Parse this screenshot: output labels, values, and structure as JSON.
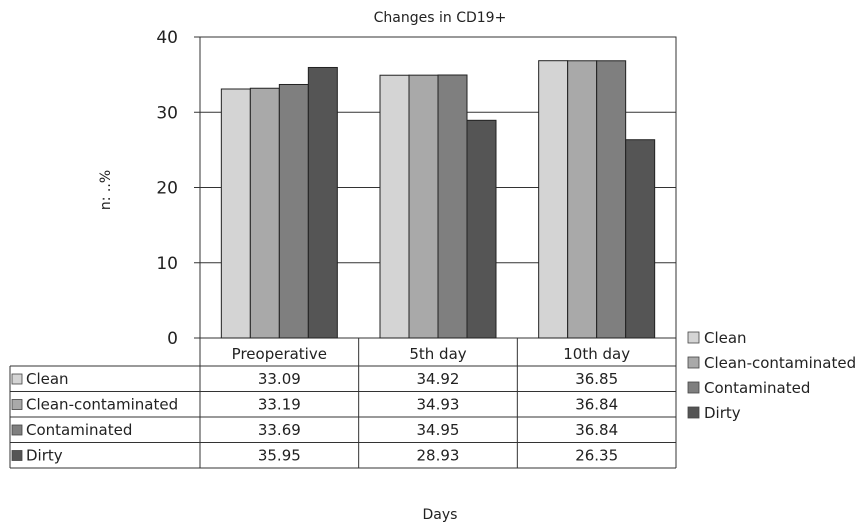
{
  "chart_data": {
    "type": "bar",
    "title": "Changes in CD19+",
    "ylabel": "n: ..%",
    "xlabel": "Days",
    "ylim": [
      0,
      40
    ],
    "yticks": [
      0,
      10,
      20,
      30,
      40
    ],
    "categories": [
      "Preoperative",
      "5th day",
      "10th day"
    ],
    "series": [
      {
        "name": "Clean",
        "color": "#d4d4d4",
        "values": [
          33.09,
          34.92,
          36.85
        ],
        "display": [
          "33.09",
          "34.92",
          "36.85"
        ]
      },
      {
        "name": "Clean-contaminated",
        "color": "#a9a9a9",
        "values": [
          33.19,
          34.93,
          36.84
        ],
        "display": [
          "33.19",
          "34.93",
          "36.84"
        ]
      },
      {
        "name": "Contaminated",
        "color": "#7f7f7f",
        "values": [
          33.69,
          34.95,
          36.84
        ],
        "display": [
          "33.69",
          "34.95",
          "36.84"
        ]
      },
      {
        "name": "Dirty",
        "color": "#555555",
        "values": [
          35.95,
          28.93,
          26.35
        ],
        "display": [
          "35.95",
          "28.93",
          "26.35"
        ]
      }
    ],
    "legend_position": "right",
    "grid": true,
    "data_table": true
  }
}
